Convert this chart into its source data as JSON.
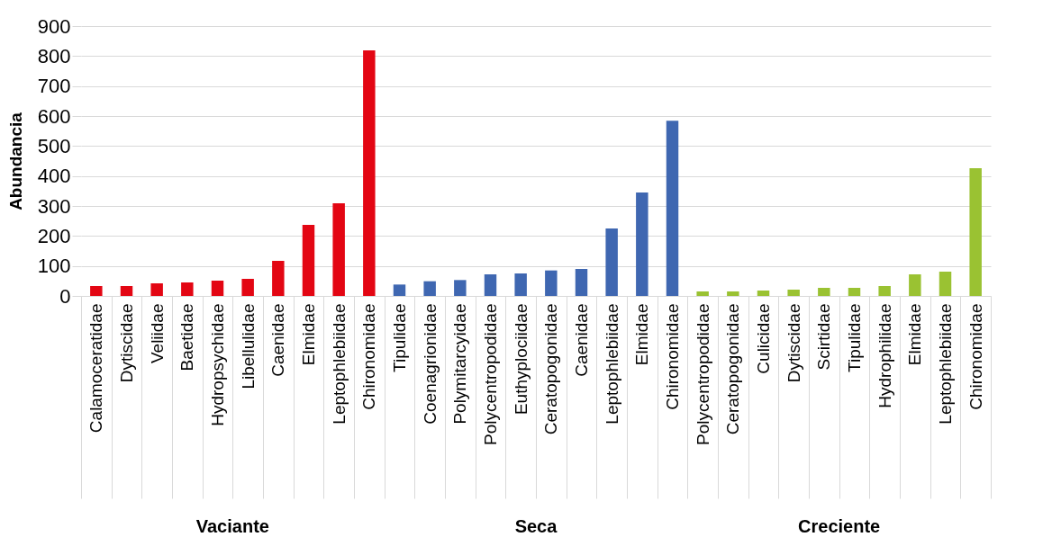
{
  "chart_data": {
    "type": "bar",
    "ylabel": "Abundancia",
    "categories": [
      "Calamoceratidae",
      "Dytiscidae",
      "Veliidae",
      "Baetidae",
      "Hydropsychidae",
      "Libellulidae",
      "Caenidae",
      "Elmidae",
      "Leptophlebiidae",
      "Chironomidae",
      "Tipulidae",
      "Coenagrionidae",
      "Polymitarcyidae",
      "Polycentropodidae",
      "Euthyplociidae",
      "Ceratopogonidae",
      "Caenidae",
      "Leptophlebiidae",
      "Elmidae",
      "Chironomidae",
      "Polycentropodidae",
      "Ceratopogonidae",
      "Culicidae",
      "Dytiscidae",
      "Scirtidae",
      "Tipulidae",
      "Hydrophilidae",
      "Elmidae",
      "Leptophlebiidae",
      "Chironomidae"
    ],
    "values": [
      33,
      33,
      42,
      45,
      51,
      57,
      117,
      237,
      309,
      819,
      38,
      49,
      53,
      72,
      75,
      85,
      90,
      225,
      345,
      584,
      15,
      15,
      18,
      21,
      27,
      27,
      33,
      72,
      81,
      426
    ],
    "colors": [
      "#e30613",
      "#e30613",
      "#e30613",
      "#e30613",
      "#e30613",
      "#e30613",
      "#e30613",
      "#e30613",
      "#e30613",
      "#e30613",
      "#3f67b1",
      "#3f67b1",
      "#3f67b1",
      "#3f67b1",
      "#3f67b1",
      "#3f67b1",
      "#3f67b1",
      "#3f67b1",
      "#3f67b1",
      "#3f67b1",
      "#9ac232",
      "#9ac232",
      "#9ac232",
      "#9ac232",
      "#9ac232",
      "#9ac232",
      "#9ac232",
      "#9ac232",
      "#9ac232",
      "#9ac232"
    ],
    "annotations": [
      "Vaciante",
      "Seca",
      "Creciente"
    ],
    "ylim": [
      0,
      900
    ],
    "yticks": [
      0,
      100,
      200,
      300,
      400,
      500,
      600,
      700,
      800,
      900
    ],
    "grid": "y"
  }
}
